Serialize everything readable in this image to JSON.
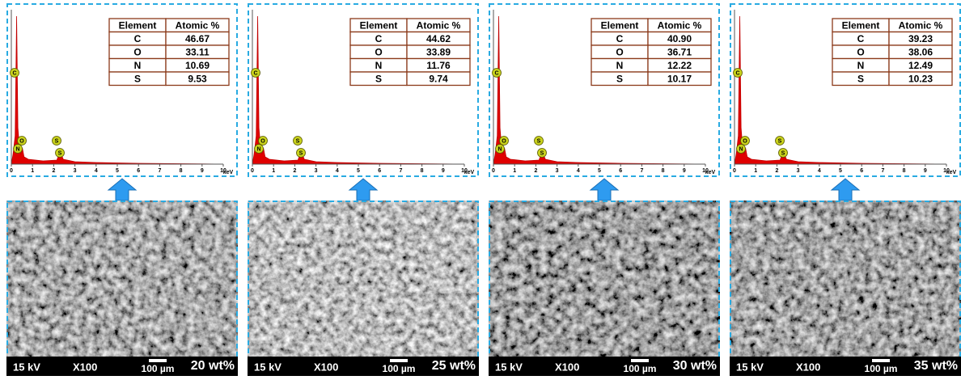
{
  "spectrum_axis": {
    "ticks": [
      0,
      1,
      2,
      3,
      4,
      5,
      6,
      7,
      8,
      9,
      10
    ],
    "unit": "keV"
  },
  "peak_labels": [
    "C",
    "O",
    "N",
    "S",
    "S"
  ],
  "sem_info": {
    "voltage": "15 kV",
    "magnification": "X100",
    "scale": "100 µm"
  },
  "panels": [
    {
      "table": {
        "header": [
          "Element",
          "Atomic %"
        ],
        "rows": [
          [
            "C",
            "46.67"
          ],
          [
            "O",
            "33.11"
          ],
          [
            "N",
            "10.69"
          ],
          [
            "S",
            "9.53"
          ]
        ]
      },
      "label": "20 wt%"
    },
    {
      "table": {
        "header": [
          "Element",
          "Atomic %"
        ],
        "rows": [
          [
            "C",
            "44.62"
          ],
          [
            "O",
            "33.89"
          ],
          [
            "N",
            "11.76"
          ],
          [
            "S",
            "9.74"
          ]
        ]
      },
      "label": "25 wt%"
    },
    {
      "table": {
        "header": [
          "Element",
          "Atomic %"
        ],
        "rows": [
          [
            "C",
            "40.90"
          ],
          [
            "O",
            "36.71"
          ],
          [
            "N",
            "12.22"
          ],
          [
            "S",
            "10.17"
          ]
        ]
      },
      "label": "30 wt%"
    },
    {
      "table": {
        "header": [
          "Element",
          "Atomic %"
        ],
        "rows": [
          [
            "C",
            "39.23"
          ],
          [
            "O",
            "38.06"
          ],
          [
            "N",
            "12.49"
          ],
          [
            "S",
            "10.23"
          ]
        ]
      },
      "label": "35 wt%"
    }
  ]
}
